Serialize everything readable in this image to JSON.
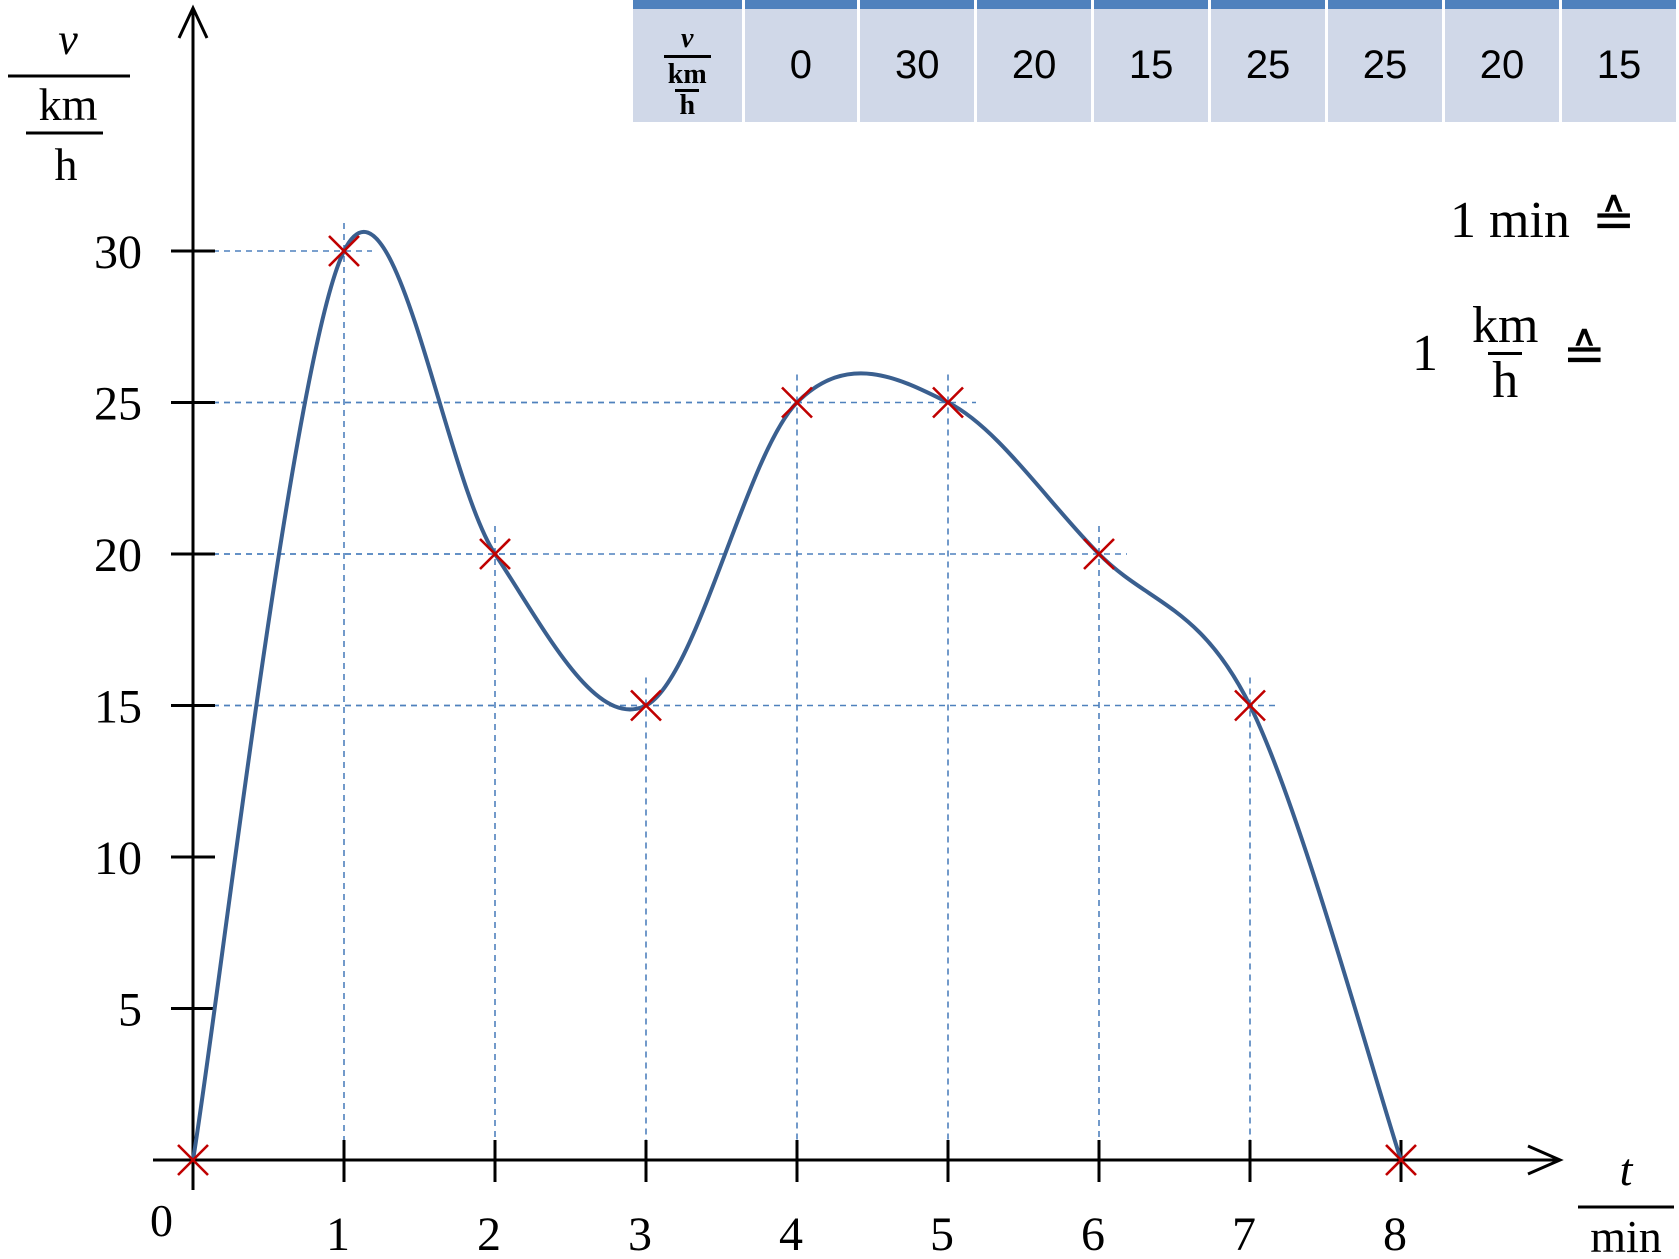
{
  "chart_data": {
    "type": "line",
    "x": [
      0,
      1,
      2,
      3,
      4,
      5,
      6,
      7,
      8
    ],
    "y": [
      0,
      30,
      20,
      15,
      25,
      25,
      20,
      15,
      0
    ],
    "xlabel": {
      "num": "t",
      "den": "min"
    },
    "ylabel": {
      "num": "v",
      "den_num": "km",
      "den_den": "h"
    },
    "origin_label": "0",
    "x_ticks": [
      {
        "value": 1,
        "label": "1"
      },
      {
        "value": 2,
        "label": "2"
      },
      {
        "value": 3,
        "label": "3"
      },
      {
        "value": 4,
        "label": "4"
      },
      {
        "value": 5,
        "label": "5"
      },
      {
        "value": 6,
        "label": "6"
      },
      {
        "value": 7,
        "label": "7"
      },
      {
        "value": 8,
        "label": "8"
      }
    ],
    "y_ticks": [
      {
        "value": 5,
        "label": "5"
      },
      {
        "value": 10,
        "label": "10"
      },
      {
        "value": 15,
        "label": "15"
      },
      {
        "value": 20,
        "label": "20"
      },
      {
        "value": 25,
        "label": "25"
      },
      {
        "value": 30,
        "label": "30"
      }
    ],
    "xlim": [
      0,
      8
    ],
    "ylim": [
      0,
      30
    ],
    "grid": "dashed guide lines at data points",
    "colors": {
      "curve": "#3a5f8f",
      "markers": "#c00000",
      "guides": "#4f81bd",
      "table_header": "#4f81bd",
      "table_cells": "#d0d8e8"
    }
  },
  "table": {
    "row_label": {
      "num": "v",
      "den_num": "km",
      "den_den": "h"
    },
    "values": [
      "0",
      "30",
      "20",
      "15",
      "25",
      "25",
      "20",
      "15"
    ]
  },
  "scale_notes": {
    "time": "1 min",
    "speed_lead": "1",
    "speed_num": "km",
    "speed_den": "h",
    "corresponds": "≙"
  }
}
